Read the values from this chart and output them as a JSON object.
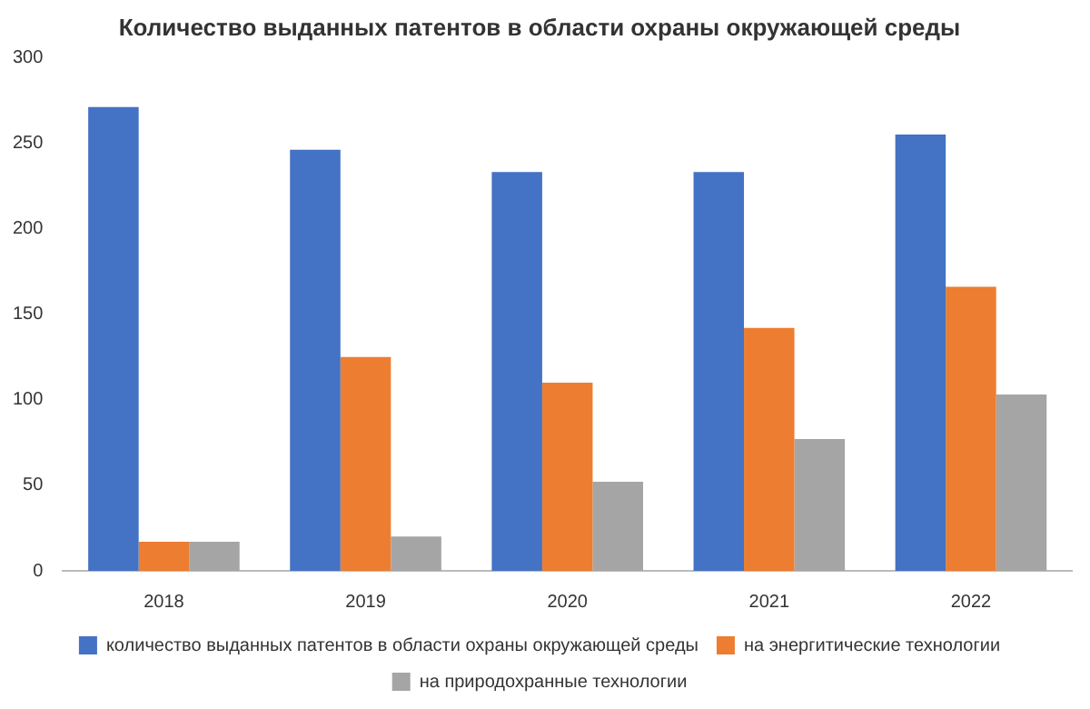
{
  "chart_data": {
    "type": "bar",
    "title": "Количество выданных патентов в области охраны окружающей среды",
    "categories": [
      "2018",
      "2019",
      "2020",
      "2021",
      "2022"
    ],
    "series": [
      {
        "name": "количество выданных патентов в области охраны окружающей среды",
        "color": "#4472c4",
        "values": [
          271,
          246,
          233,
          233,
          255
        ]
      },
      {
        "name": "на энергитические технологии",
        "color": "#ed7d31",
        "values": [
          17,
          125,
          110,
          142,
          166
        ]
      },
      {
        "name": "на природохранные технологии",
        "color": "#a5a5a5",
        "values": [
          17,
          20,
          52,
          77,
          103
        ]
      }
    ],
    "ylim": [
      0,
      300
    ],
    "yticks": [
      0,
      50,
      100,
      150,
      200,
      250,
      300
    ],
    "grid": false,
    "legend": "bottom"
  }
}
